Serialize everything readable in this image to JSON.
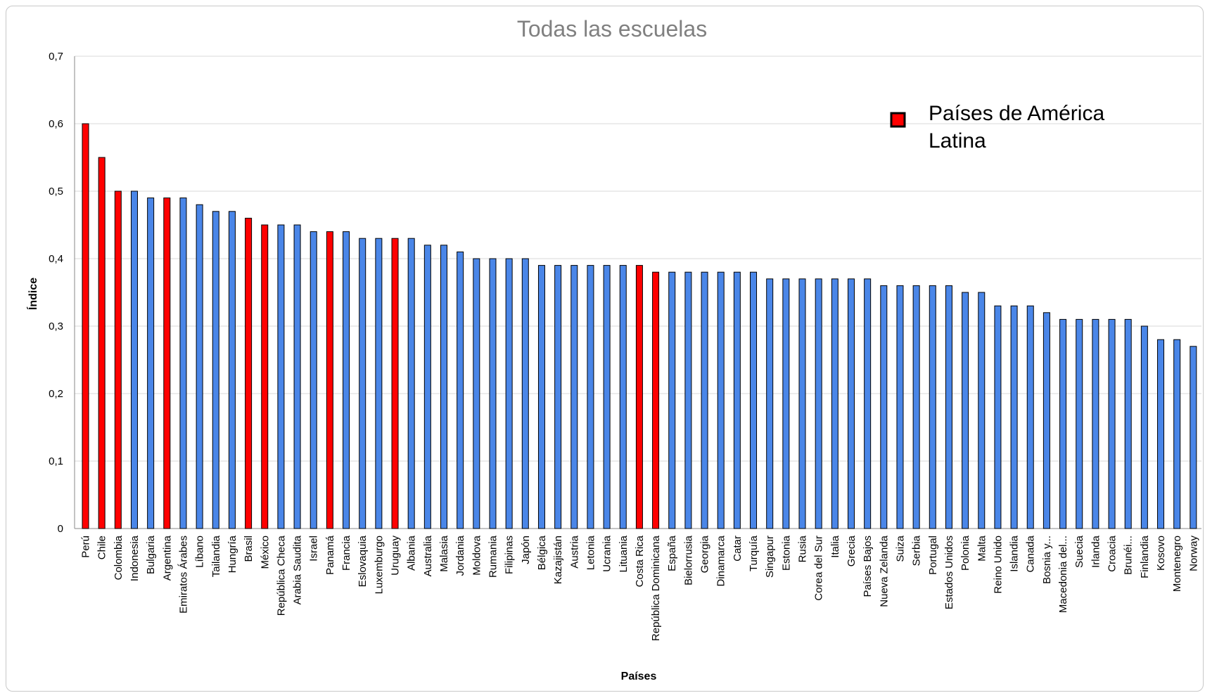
{
  "chart_data": {
    "type": "bar",
    "title": "Todas las escuelas",
    "xlabel": "Países",
    "ylabel": "Índice",
    "ylim": [
      0,
      0.7
    ],
    "yticks": [
      "0",
      "0,1",
      "0,2",
      "0,3",
      "0,4",
      "0,5",
      "0,6",
      "0,7"
    ],
    "grid": true,
    "legend": {
      "position": "top-right",
      "line1": "Países de América",
      "line2": "Latina",
      "color": "#ff0000"
    },
    "colors": {
      "latin_america": "#ff0000",
      "other": "#4a86e8"
    },
    "categories": [
      "Perú",
      "Chile",
      "Colombia",
      "Indonesia",
      "Bulgaria",
      "Argentina",
      "Emiratos Árabes",
      "Líbano",
      "Tailandia",
      "Hungría",
      "Brasil",
      "México",
      "República Checa",
      "Arabia Saudita",
      "Israel",
      "Panamá",
      "Francia",
      "Eslovaquia",
      "Luxemburgo",
      "Uruguay",
      "Albania",
      "Australia",
      "Malasia",
      "Jordania",
      "Moldova",
      "Rumania",
      "Filipinas",
      "Japón",
      "Bélgica",
      "Kazajistán",
      "Austria",
      "Letonia",
      "Ucrania",
      "Lituania",
      "Costa Rica",
      "República Dominicana",
      "España",
      "Bielorrusia",
      "Georgia",
      "Dinamarca",
      "Catar",
      "Turquía",
      "Singapur",
      "Estonia",
      "Rusia",
      "Corea del Sur",
      "Italia",
      "Grecia",
      "Países Bajos",
      "Nueva Zelanda",
      "Suiza",
      "Serbia",
      "Portugal",
      "Estados Unidos",
      "Polonia",
      "Malta",
      "Reino Unido",
      "Islandia",
      "Canada",
      "Bosnia y...",
      "Macedonia del...",
      "Suecia",
      "Irlanda",
      "Croacia",
      "Brunéi...",
      "Finlandia",
      "Kosovo",
      "Montenegro",
      "Norway"
    ],
    "values": [
      0.6,
      0.55,
      0.5,
      0.5,
      0.49,
      0.49,
      0.49,
      0.48,
      0.47,
      0.47,
      0.46,
      0.45,
      0.45,
      0.45,
      0.44,
      0.44,
      0.44,
      0.43,
      0.43,
      0.43,
      0.43,
      0.42,
      0.42,
      0.41,
      0.4,
      0.4,
      0.4,
      0.4,
      0.39,
      0.39,
      0.39,
      0.39,
      0.39,
      0.39,
      0.39,
      0.38,
      0.38,
      0.38,
      0.38,
      0.38,
      0.38,
      0.38,
      0.37,
      0.37,
      0.37,
      0.37,
      0.37,
      0.37,
      0.37,
      0.36,
      0.36,
      0.36,
      0.36,
      0.36,
      0.35,
      0.35,
      0.33,
      0.33,
      0.33,
      0.32,
      0.31,
      0.31,
      0.31,
      0.31,
      0.31,
      0.3,
      0.28,
      0.28,
      0.27
    ],
    "latin_america": [
      true,
      true,
      true,
      false,
      false,
      true,
      false,
      false,
      false,
      false,
      true,
      true,
      false,
      false,
      false,
      true,
      false,
      false,
      false,
      true,
      false,
      false,
      false,
      false,
      false,
      false,
      false,
      false,
      false,
      false,
      false,
      false,
      false,
      false,
      true,
      true,
      false,
      false,
      false,
      false,
      false,
      false,
      false,
      false,
      false,
      false,
      false,
      false,
      false,
      false,
      false,
      false,
      false,
      false,
      false,
      false,
      false,
      false,
      false,
      false,
      false,
      false,
      false,
      false,
      false,
      false,
      false,
      false,
      false
    ]
  }
}
